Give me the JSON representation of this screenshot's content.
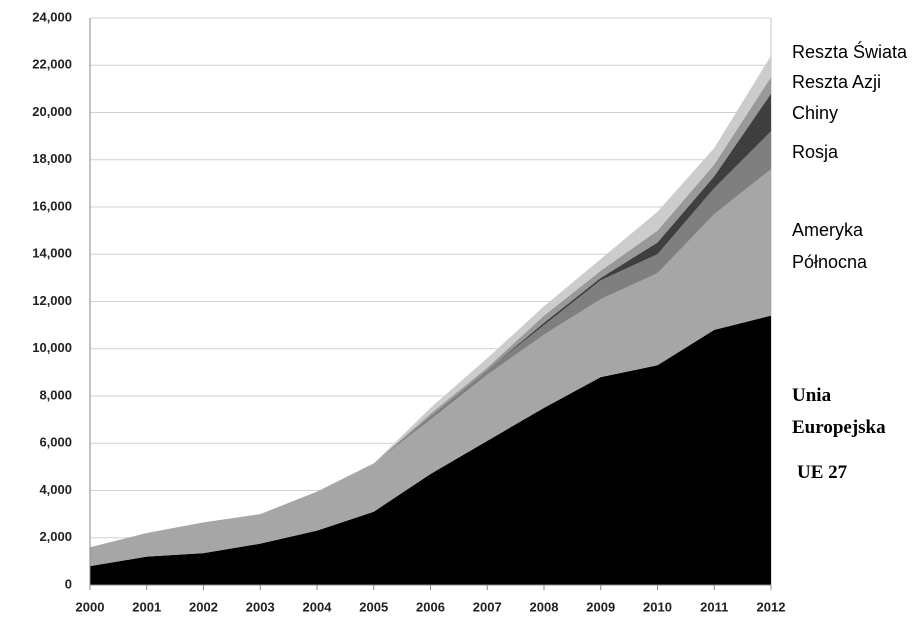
{
  "chart_data": {
    "type": "stacked-area",
    "x": [
      2000,
      2001,
      2002,
      2003,
      2004,
      2005,
      2006,
      2007,
      2008,
      2009,
      2010,
      2011,
      2012
    ],
    "xlim": [
      2000,
      2012
    ],
    "xticks": [
      2000,
      2001,
      2002,
      2003,
      2004,
      2005,
      2006,
      2007,
      2008,
      2009,
      2010,
      2011,
      2012
    ],
    "ylim": [
      0,
      24000
    ],
    "yticks": [
      0,
      {
        "value": 2000,
        "label": "2,000"
      },
      {
        "value": 4000,
        "label": "4,000"
      },
      {
        "value": 6000,
        "label": "6,000"
      },
      {
        "value": 8000,
        "label": "8,000"
      },
      {
        "value": 10000,
        "label": "10,000"
      },
      {
        "value": 12000,
        "label": "12,000"
      },
      {
        "value": 14000,
        "label": "14,000"
      },
      {
        "value": 16000,
        "label": "16,000"
      },
      {
        "value": 18000,
        "label": "18,000"
      },
      {
        "value": 20000,
        "label": "20,000"
      },
      {
        "value": 22000,
        "label": "22,000"
      },
      {
        "value": 24000,
        "label": "24,000"
      }
    ],
    "grid": true,
    "series": [
      {
        "name": "Unia Europejska",
        "color": "#000000",
        "values": [
          800,
          1200,
          1350,
          1750,
          2300,
          3100,
          4700,
          6100,
          7500,
          8800,
          9300,
          10800,
          11400
        ]
      },
      {
        "name": "Ameryka Północna",
        "color": "#a6a6a6",
        "values": [
          800,
          1000,
          1300,
          1250,
          1650,
          2050,
          2300,
          2800,
          3100,
          3300,
          3900,
          4900,
          6200
        ]
      },
      {
        "name": "Rosja",
        "color": "#7f7f7f",
        "values": [
          0,
          0,
          0,
          0,
          0,
          0,
          150,
          200,
          400,
          800,
          800,
          1100,
          1600
        ]
      },
      {
        "name": "Chiny",
        "color": "#3f3f3f",
        "values": [
          0,
          0,
          0,
          0,
          0,
          0,
          0,
          0,
          100,
          100,
          500,
          500,
          1600
        ]
      },
      {
        "name": "Reszta Azji",
        "color": "#999999",
        "values": [
          0,
          0,
          0,
          0,
          0,
          0,
          100,
          100,
          300,
          300,
          500,
          500,
          700
        ]
      },
      {
        "name": "Reszta Świata",
        "color": "#cccccc",
        "values": [
          0,
          0,
          0,
          0,
          0,
          0,
          250,
          400,
          400,
          500,
          800,
          700,
          900
        ]
      }
    ],
    "annotation": "UE 27"
  }
}
